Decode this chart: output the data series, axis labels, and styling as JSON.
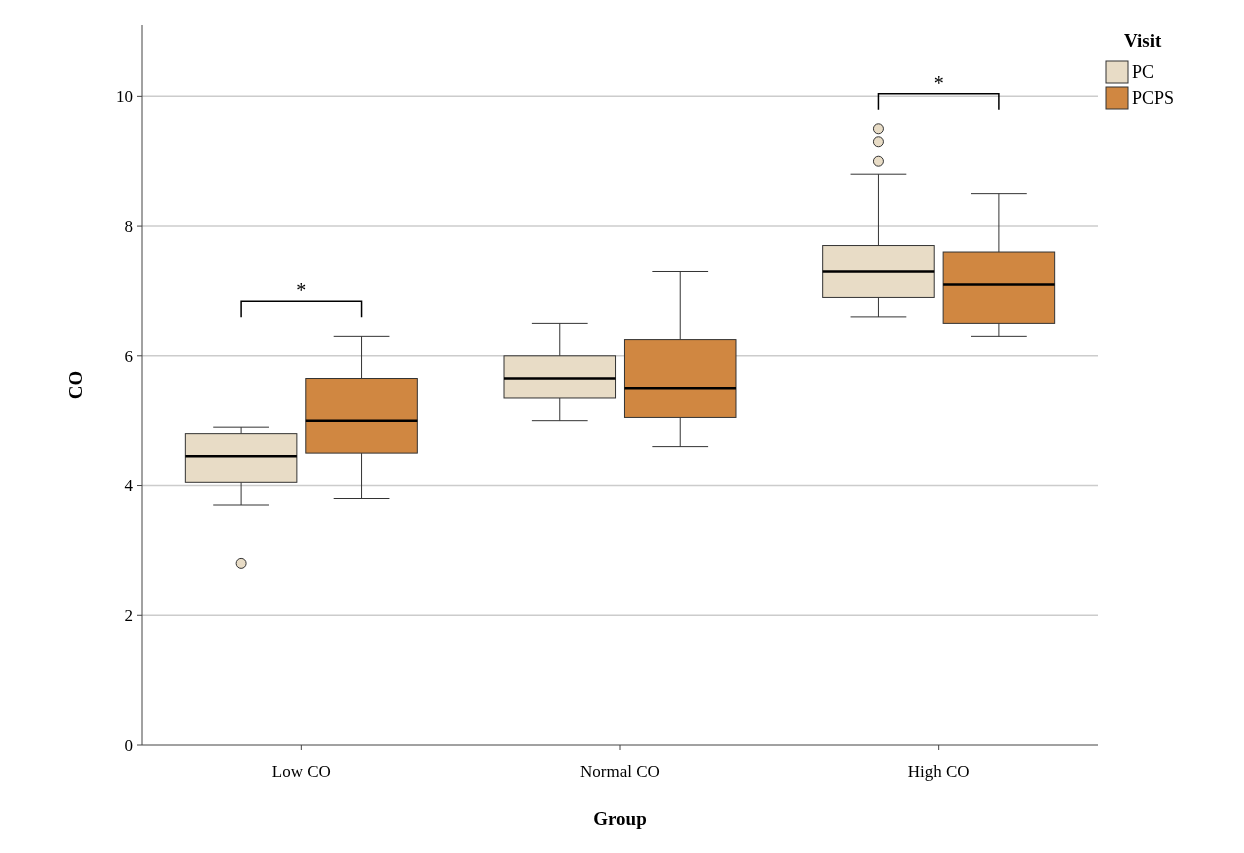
{
  "chart_data": {
    "type": "box",
    "xlabel": "Group",
    "ylabel": "CO",
    "legend_title": "Visit",
    "legend": "top right",
    "grid": "y",
    "categories": [
      "Low CO",
      "Normal CO",
      "High CO"
    ],
    "ylim": [
      0,
      11.1
    ],
    "yticks": [
      0,
      2,
      4,
      6,
      8,
      10
    ],
    "series": [
      {
        "name": "PC",
        "color": "#e8dcc6",
        "boxes": [
          {
            "low": 3.7,
            "q1": 4.05,
            "median": 4.45,
            "q3": 4.8,
            "high": 4.9,
            "outliers": [
              2.8
            ]
          },
          {
            "low": 5.0,
            "q1": 5.35,
            "median": 5.65,
            "q3": 6.0,
            "high": 6.5
          },
          {
            "low": 6.6,
            "q1": 6.9,
            "median": 7.3,
            "q3": 7.7,
            "high": 8.8,
            "outliers": [
              9.0,
              9.3,
              9.5
            ]
          }
        ]
      },
      {
        "name": "PCPS",
        "color": "#d08741",
        "boxes": [
          {
            "low": 3.8,
            "q1": 4.5,
            "median": 5.0,
            "q3": 5.65,
            "high": 6.3
          },
          {
            "low": 4.6,
            "q1": 5.05,
            "median": 5.5,
            "q3": 6.25,
            "high": 7.3
          },
          {
            "low": 6.3,
            "q1": 6.5,
            "median": 7.1,
            "q3": 7.6,
            "high": 8.5
          }
        ]
      }
    ],
    "annotations": [
      "*",
      "*"
    ]
  }
}
